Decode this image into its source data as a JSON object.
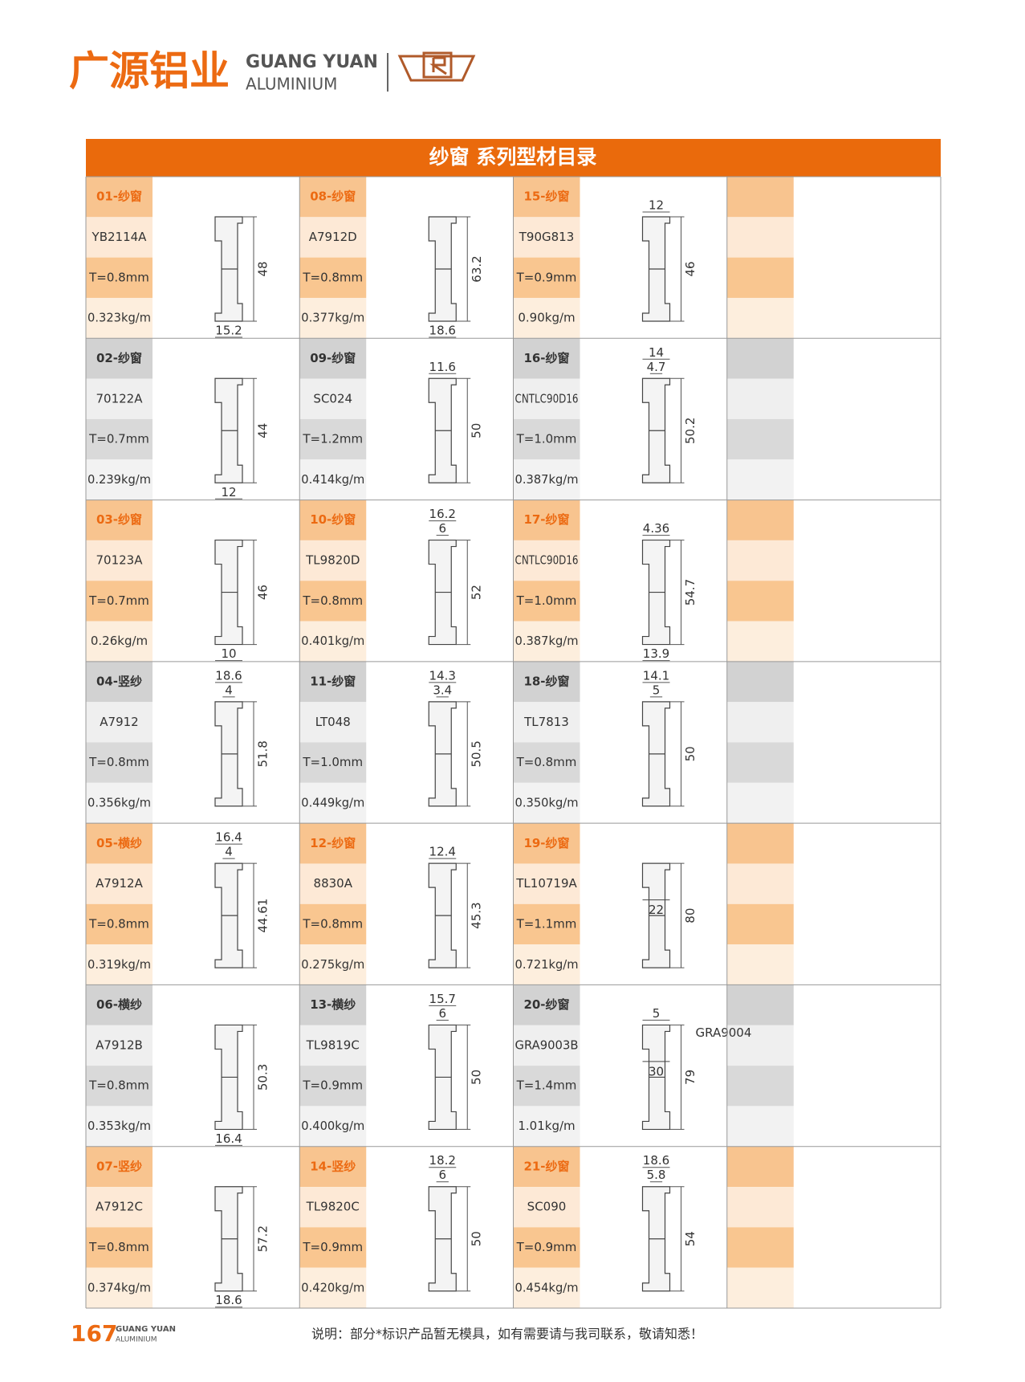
{
  "header": {
    "brand_cn": "广源铝业",
    "brand_en": "GUANG YUAN",
    "brand_sub": "ALUMINIUM"
  },
  "catalog": {
    "title": "纱窗 系列型材目录",
    "items": [
      {
        "code": "01-纱窗",
        "model": "YB2114A",
        "thickness": "T=0.8mm",
        "weight": "0.323kg/m",
        "dims": {
          "height": "48",
          "bottom": "15.2"
        }
      },
      {
        "code": "02-纱窗",
        "model": "70122A",
        "thickness": "T=0.7mm",
        "weight": "0.239kg/m",
        "dims": {
          "height": "44",
          "bottom": "12"
        }
      },
      {
        "code": "03-纱窗",
        "model": "70123A",
        "thickness": "T=0.7mm",
        "weight": "0.26kg/m",
        "dims": {
          "height": "46",
          "bottom": "10"
        }
      },
      {
        "code": "04-竖纱",
        "model": "A7912",
        "thickness": "T=0.8mm",
        "weight": "0.356kg/m",
        "dims": {
          "top": [
            "18.6",
            "4"
          ],
          "height": "51.8"
        }
      },
      {
        "code": "05-横纱",
        "model": "A7912A",
        "thickness": "T=0.8mm",
        "weight": "0.319kg/m",
        "dims": {
          "top": [
            "16.4",
            "4"
          ],
          "height": "44.61"
        }
      },
      {
        "code": "06-横纱",
        "model": "A7912B",
        "thickness": "T=0.8mm",
        "weight": "0.353kg/m",
        "dims": {
          "height": "50.3",
          "bottom": "16.4"
        }
      },
      {
        "code": "07-竖纱",
        "model": "A7912C",
        "thickness": "T=0.8mm",
        "weight": "0.374kg/m",
        "dims": {
          "height": "57.2",
          "bottom": "18.6"
        }
      },
      {
        "code": "08-纱窗",
        "model": "A7912D",
        "thickness": "T=0.8mm",
        "weight": "0.377kg/m",
        "dims": {
          "height": "63.2",
          "bottom": "18.6"
        }
      },
      {
        "code": "09-纱窗",
        "model": "SC024",
        "thickness": "T=1.2mm",
        "weight": "0.414kg/m",
        "dims": {
          "top": [
            "11.6"
          ],
          "height": "50"
        }
      },
      {
        "code": "10-纱窗",
        "model": "TL9820D",
        "thickness": "T=0.8mm",
        "weight": "0.401kg/m",
        "dims": {
          "top": [
            "16.2",
            "6"
          ],
          "height": "52"
        }
      },
      {
        "code": "11-纱窗",
        "model": "LT048",
        "thickness": "T=1.0mm",
        "weight": "0.449kg/m",
        "dims": {
          "top": [
            "14.3",
            "3.4"
          ],
          "height": "50.5"
        }
      },
      {
        "code": "12-纱窗",
        "model": "8830A",
        "thickness": "T=0.8mm",
        "weight": "0.275kg/m",
        "dims": {
          "top": [
            "12.4"
          ],
          "height": "45.3"
        }
      },
      {
        "code": "13-横纱",
        "model": "TL9819C",
        "thickness": "T=0.9mm",
        "weight": "0.400kg/m",
        "dims": {
          "top": [
            "15.7",
            "6"
          ],
          "height": "50"
        }
      },
      {
        "code": "14-竖纱",
        "model": "TL9820C",
        "thickness": "T=0.9mm",
        "weight": "0.420kg/m",
        "dims": {
          "top": [
            "18.2",
            "6"
          ],
          "height": "50"
        }
      },
      {
        "code": "15-纱窗",
        "model": "T90G813",
        "thickness": "T=0.9mm",
        "weight": "0.90kg/m",
        "dims": {
          "top": [
            "12"
          ],
          "height": "46"
        }
      },
      {
        "code": "16-纱窗",
        "model": "CNTLC90D16",
        "thickness": "T=1.0mm",
        "weight": "0.387kg/m",
        "dims": {
          "top": [
            "14",
            "4.7"
          ],
          "height": "50.2"
        }
      },
      {
        "code": "17-纱窗",
        "model": "CNTLC90D16",
        "thickness": "T=1.0mm",
        "weight": "0.387kg/m",
        "dims": {
          "top": [
            "4.36"
          ],
          "height": "54.7",
          "bottom": "13.9"
        }
      },
      {
        "code": "18-纱窗",
        "model": "TL7813",
        "thickness": "T=0.8mm",
        "weight": "0.350kg/m",
        "dims": {
          "top": [
            "14.1",
            "5"
          ],
          "height": "50"
        }
      },
      {
        "code": "19-纱窗",
        "model": "TL10719A",
        "thickness": "T=1.1mm",
        "weight": "0.721kg/m",
        "dims": {
          "inner": "22",
          "height": "80"
        }
      },
      {
        "code": "20-纱窗",
        "model": "GRA9003B",
        "thickness": "T=1.4mm",
        "weight": "1.01kg/m",
        "dims": {
          "top": [
            "5"
          ],
          "height": "79",
          "inner": "30",
          "note": "GRA9004"
        }
      },
      {
        "code": "21-纱窗",
        "model": "SC090",
        "thickness": "T=0.9mm",
        "weight": "0.454kg/m",
        "dims": {
          "top": [
            "18.6",
            "5.8"
          ],
          "height": "54"
        }
      }
    ]
  },
  "footer": {
    "page": "167",
    "brand_en": "GUANG YUAN",
    "brand_sub": "ALUMINIUM",
    "note": "说明：部分*标识产品暂无模具，如有需要请与我司联系，敬请知悉！"
  }
}
